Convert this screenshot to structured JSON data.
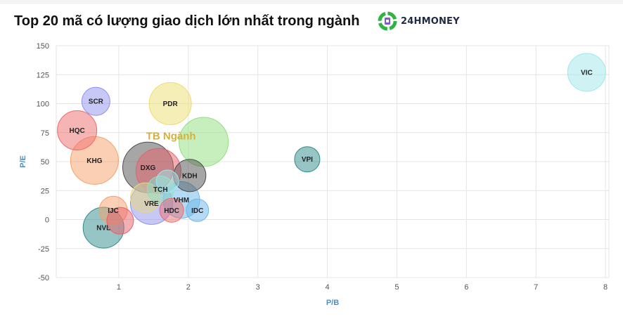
{
  "header": {
    "title": "Top 20 mã có lượng giao dịch lớn nhất trong ngành",
    "brand": "24HMONEY"
  },
  "chart_data": {
    "type": "bubble",
    "title": "Top 20 mã có lượng giao dịch lớn nhất trong ngành",
    "xlabel": "P/B",
    "ylabel": "P/E",
    "xlim": [
      0.1,
      8.05
    ],
    "ylim": [
      -50,
      150
    ],
    "xticks": [
      1,
      2,
      3,
      4,
      5,
      6,
      7,
      8
    ],
    "yticks": [
      150,
      125,
      100,
      75,
      50,
      25,
      0,
      -25,
      -50
    ],
    "grid": true,
    "average_label": "TB Ngành",
    "points": [
      {
        "label": "DXG",
        "x": 1.42,
        "y": 45,
        "size": 36,
        "color": "#4d4d4d"
      },
      {
        "label": "",
        "x": 1.57,
        "y": 42,
        "size": 32,
        "color": "#e8606a"
      },
      {
        "label": "",
        "x": 2.22,
        "y": 67,
        "size": 35,
        "color": "#8fe07e"
      },
      {
        "label": "KHG",
        "x": 0.65,
        "y": 51,
        "size": 34,
        "color": "#f6a06a"
      },
      {
        "label": "NVL",
        "x": 0.78,
        "y": -7,
        "size": 29,
        "color": "#2f8a8a"
      },
      {
        "label": "HQC",
        "x": 0.4,
        "y": 77,
        "size": 28,
        "color": "#ee6b6b"
      },
      {
        "label": "PDR",
        "x": 1.74,
        "y": 100,
        "size": 30,
        "color": "#eedd70"
      },
      {
        "label": "VIC",
        "x": 7.73,
        "y": 127,
        "size": 27,
        "color": "#9fe8ea"
      },
      {
        "label": "VRE",
        "x": 1.47,
        "y": 14,
        "size": 30,
        "color": "#8f92ee"
      },
      {
        "label": "VHM",
        "x": 1.9,
        "y": 17,
        "size": 26,
        "color": "#6cb8ea"
      },
      {
        "label": "",
        "x": 1.38,
        "y": 19,
        "size": 21,
        "color": "#e8d878"
      },
      {
        "label": "SCR",
        "x": 0.67,
        "y": 102,
        "size": 20,
        "color": "#8f92ee"
      },
      {
        "label": "KDH",
        "x": 2.02,
        "y": 38,
        "size": 23,
        "color": "#4d4d4d"
      },
      {
        "label": "IJC",
        "x": 0.92,
        "y": 8,
        "size": 20,
        "color": "#f6a06a"
      },
      {
        "label": "",
        "x": 1.02,
        "y": -1,
        "size": 19,
        "color": "#e8606a"
      },
      {
        "label": "TCH",
        "x": 1.6,
        "y": 26,
        "size": 19,
        "color": "#8fe0c0"
      },
      {
        "label": "",
        "x": 1.7,
        "y": 33,
        "size": 16,
        "color": "#9fe8ea"
      },
      {
        "label": "VPI",
        "x": 3.71,
        "y": 52,
        "size": 18,
        "color": "#2f8a8a"
      },
      {
        "label": "HDC",
        "x": 1.76,
        "y": 8,
        "size": 17,
        "color": "#ee6b6b"
      },
      {
        "label": "IDC",
        "x": 2.13,
        "y": 8,
        "size": 16,
        "color": "#6cb8ea"
      }
    ]
  },
  "colors": {
    "brand_green": "#2fb344",
    "brand_purple": "#7b5cd6",
    "axis_title": "#4a90c8",
    "average_label": "#d6b13a"
  }
}
